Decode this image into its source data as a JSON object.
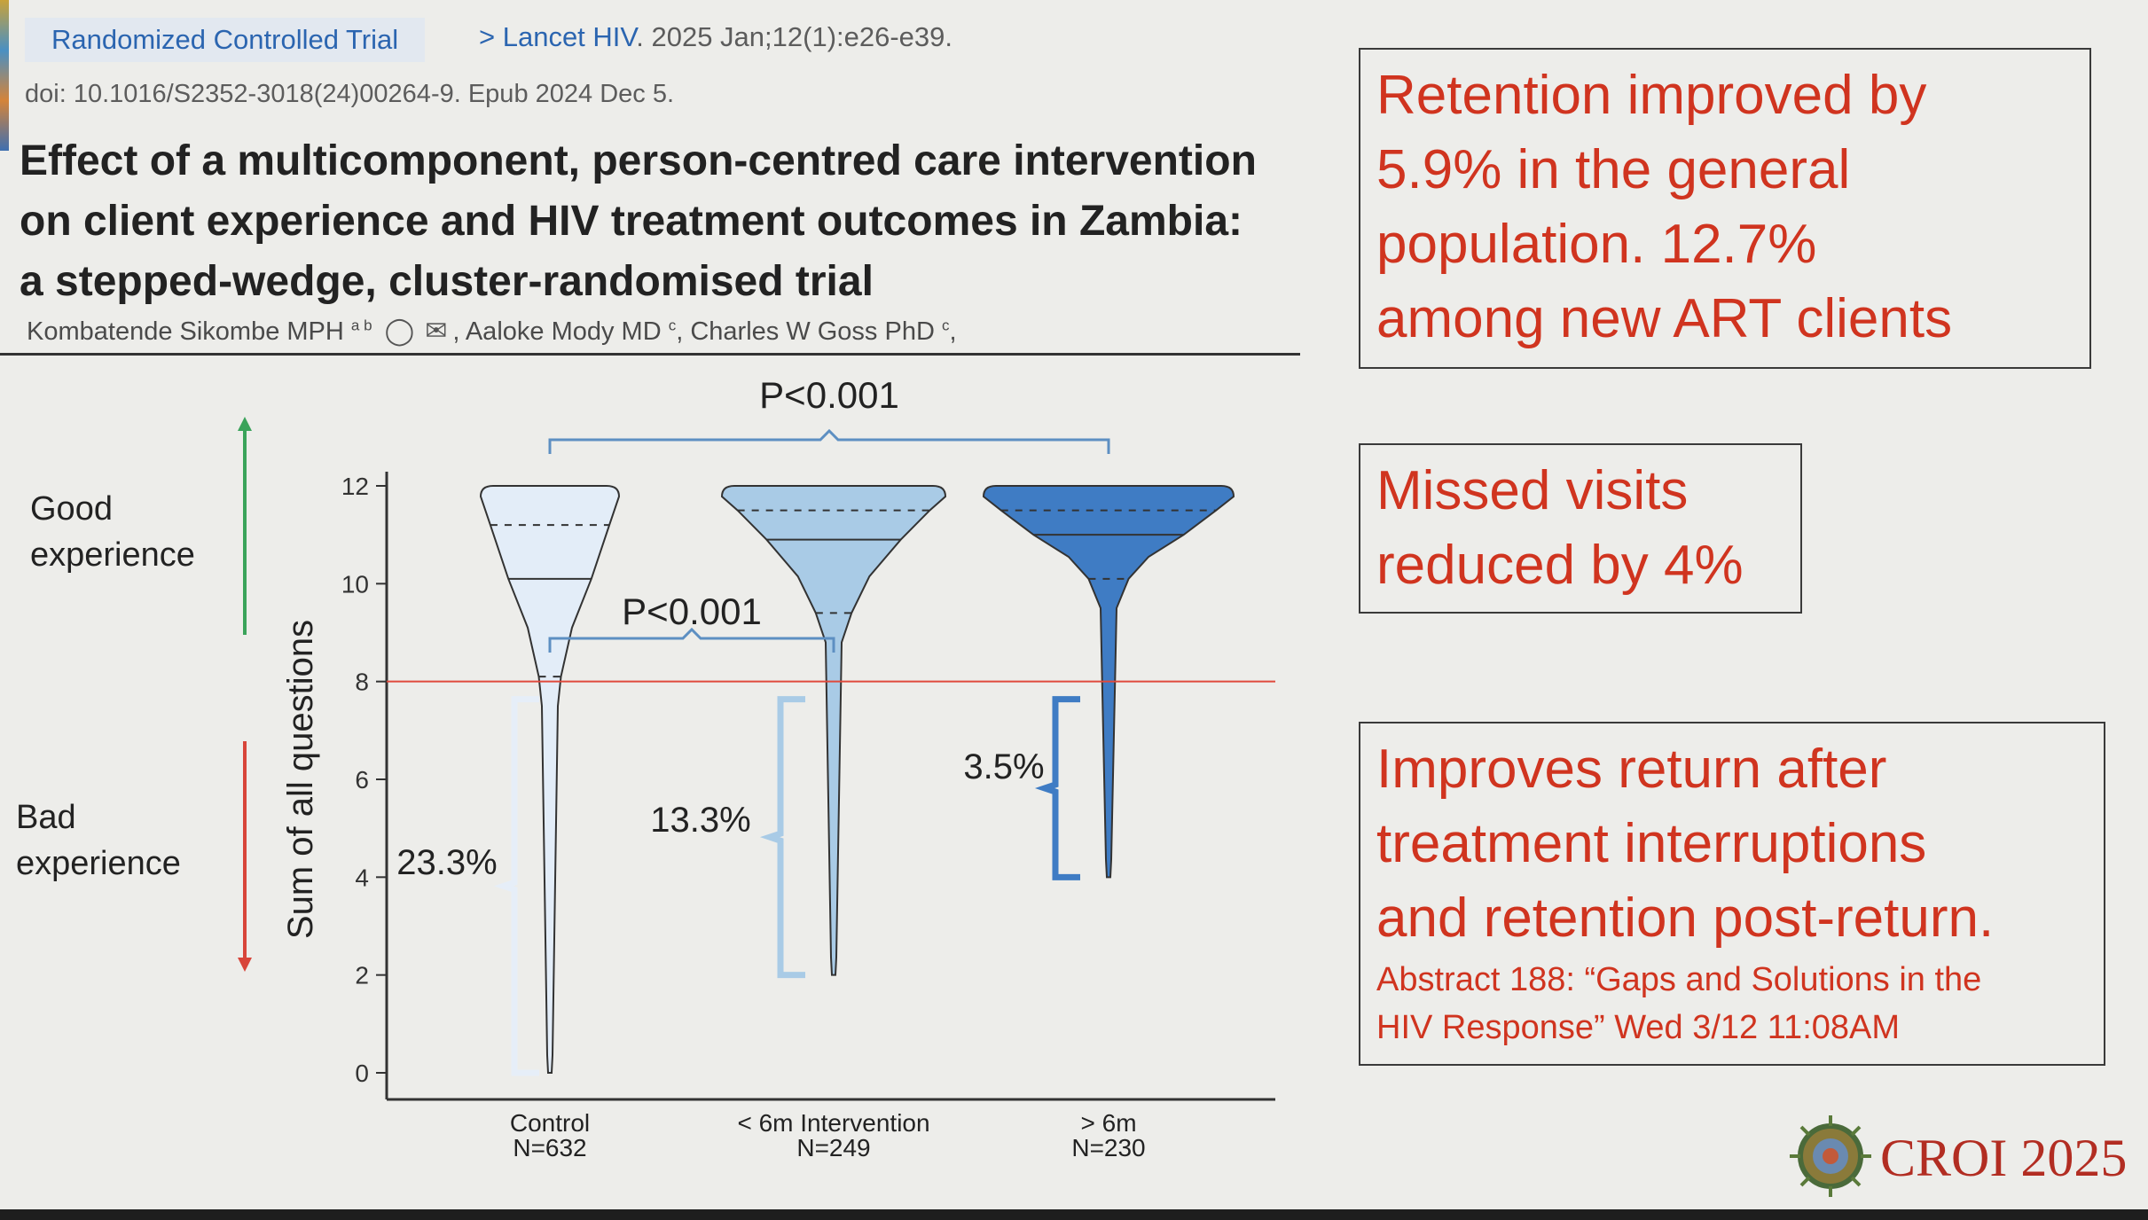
{
  "header": {
    "badge": "Randomized Controlled Trial",
    "journal_link": "> Lancet HIV",
    "journal_rest": ". 2025 Jan;12(1):e26-e39.",
    "doi": "doi: 10.1016/S2352-3018(24)00264-9. Epub 2024 Dec 5.",
    "title_lines": [
      "Effect of a multicomponent, person-centred care intervention",
      "on client experience and HIV treatment outcomes in Zambia:",
      "a stepped-wedge, cluster-randomised trial"
    ],
    "authors": {
      "a1": "Kombatende Sikombe MPH",
      "a1_sup": "a b",
      "a2": ", Aaloke Mody MD",
      "a2_sup": "c",
      "a3": ", Charles W Goss PhD",
      "a3_sup": "c",
      "tail": ","
    }
  },
  "side_labels": {
    "good": [
      "Good",
      "experience"
    ],
    "bad": [
      "Bad",
      "experience"
    ]
  },
  "callouts": {
    "retention": [
      "Retention improved by",
      "5.9% in the general",
      "population. 12.7%",
      "among new ART clients"
    ],
    "missed": [
      "Missed visits",
      "reduced by 4%"
    ],
    "returns": [
      "Improves return after",
      "treatment interruptions",
      "and retention post-return."
    ],
    "abstract": [
      "Abstract 188: “Gaps and Solutions in the",
      "HIV Response” Wed 3/12 11:08AM"
    ]
  },
  "logo": {
    "text": "CROI 2025"
  },
  "colors": {
    "callout_text": "#d0341f",
    "good_arrow": "#3aa35a",
    "bad_arrow": "#d8453a",
    "threshold": "#e04a3c",
    "control_fill": "#e3edf8",
    "short_fill": "#a9cbe6",
    "long_fill": "#3f7cc4",
    "bracket_control": "#e6eef8",
    "bracket_short": "#a9cbe6",
    "bracket_long": "#3f7cc4",
    "pbracket": "#5d8fc2"
  },
  "chart_data": {
    "type": "violin",
    "ylabel": "Sum of all questions",
    "ylim": [
      0,
      12
    ],
    "yticks": [
      0,
      2,
      4,
      6,
      8,
      10,
      12
    ],
    "threshold": 8,
    "groups": [
      {
        "name": "Control",
        "n": "N=632",
        "min": 0,
        "max": 12,
        "median": 10.1,
        "q1": 8.1,
        "q3": 11.2,
        "below_pct": "23.3%"
      },
      {
        "name": "< 6m Intervention",
        "n": "N=249",
        "min": 2,
        "max": 12,
        "median": 10.9,
        "q1": 9.4,
        "q3": 11.5,
        "below_pct": "13.3%"
      },
      {
        "name": "> 6m",
        "n": "N=230",
        "min": 4,
        "max": 12,
        "median": 11.0,
        "q1": 10.1,
        "q3": 11.5,
        "below_pct": "3.5%"
      }
    ],
    "comparisons": [
      {
        "from": "Control",
        "to": "> 6m",
        "label": "P<0.001"
      },
      {
        "from": "Control",
        "to": "< 6m Intervention",
        "label": "P<0.001"
      }
    ]
  }
}
